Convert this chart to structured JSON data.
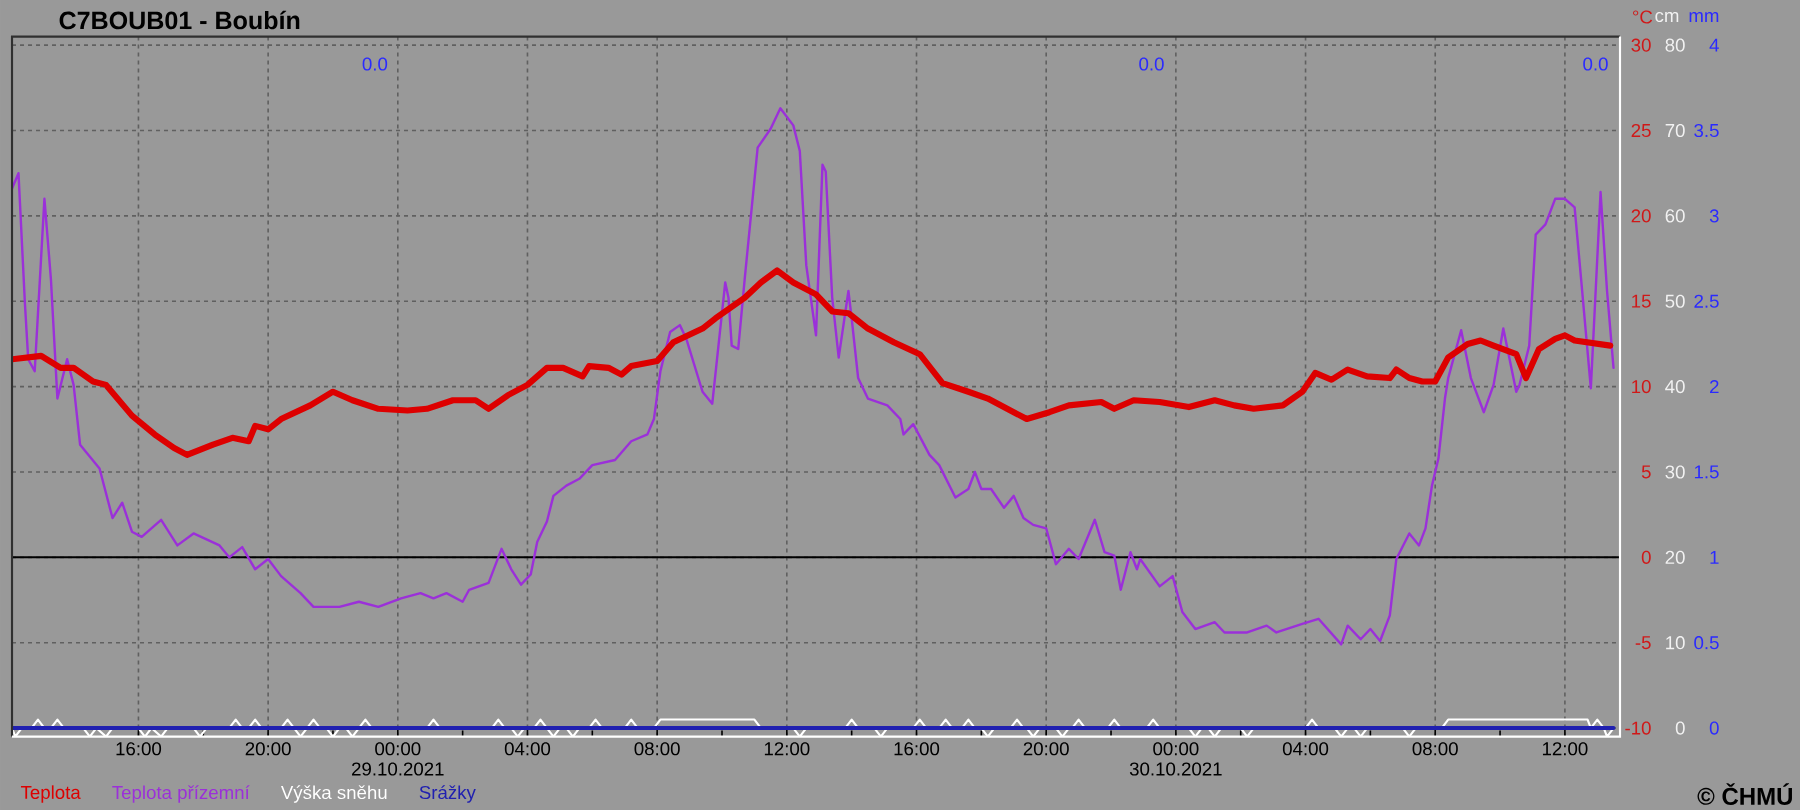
{
  "chart_data": {
    "type": "line",
    "title": "C7BOUB01 - Boubín",
    "ylabel": "°C",
    "y2label": "cm",
    "y3label": "mm",
    "xlim": [
      "2021-10-28T12:06",
      "2021-10-30T13:42"
    ],
    "xticks": [
      {
        "value": "2021-10-28T16:00",
        "label": "16:00"
      },
      {
        "value": "2021-10-28T20:00",
        "label": "20:00"
      },
      {
        "value": "2021-10-29T00:00",
        "label": "00:00 29.10.2021"
      },
      {
        "value": "2021-10-29T04:00",
        "label": "04:00"
      },
      {
        "value": "2021-10-29T08:00",
        "label": "08:00"
      },
      {
        "value": "2021-10-29T12:00",
        "label": "12:00"
      },
      {
        "value": "2021-10-29T16:00",
        "label": "16:00"
      },
      {
        "value": "2021-10-29T20:00",
        "label": "20:00"
      },
      {
        "value": "2021-10-30T00:00",
        "label": "00:00 30.10.2021"
      },
      {
        "value": "2021-10-30T04:00",
        "label": "04:00"
      },
      {
        "value": "2021-10-30T08:00",
        "label": "08:00"
      },
      {
        "value": "2021-10-30T12:00",
        "label": "12:00"
      }
    ],
    "ylim": [
      -10.5,
      30.5
    ],
    "yticks": [
      -10,
      -5,
      0,
      5,
      10,
      15,
      20,
      25,
      30
    ],
    "y2lim": [
      -1,
      81
    ],
    "y2ticks": [
      0,
      10,
      20,
      30,
      40,
      50,
      60,
      70,
      80
    ],
    "y3lim": [
      -0.05,
      4.05
    ],
    "y3ticks": [
      0,
      0.5,
      1,
      1.5,
      2,
      2.5,
      3,
      3.5,
      4
    ],
    "grid": true,
    "legend": "bottom",
    "ref_lines": [
      {
        "axis": "y",
        "value": 0,
        "color": "#000000"
      }
    ],
    "annotations": [
      "0.0",
      "0.0",
      "0.0",
      "© ČHMÚ"
    ],
    "series": [
      {
        "name": "Teplota",
        "color": "#dd0000",
        "x": [
          "2021-10-28T12:06",
          "2021-10-28T13:00",
          "2021-10-28T13:36",
          "2021-10-28T14:00",
          "2021-10-28T14:36",
          "2021-10-28T15:00",
          "2021-10-28T15:48",
          "2021-10-28T16:30",
          "2021-10-28T17:06",
          "2021-10-28T17:30",
          "2021-10-28T18:18",
          "2021-10-28T18:54",
          "2021-10-28T19:24",
          "2021-10-28T19:36",
          "2021-10-28T20:00",
          "2021-10-28T20:24",
          "2021-10-28T21:18",
          "2021-10-28T22:00",
          "2021-10-28T22:36",
          "2021-10-28T23:24",
          "2021-10-29T00:18",
          "2021-10-29T00:54",
          "2021-10-29T01:42",
          "2021-10-29T02:24",
          "2021-10-29T02:48",
          "2021-10-29T03:24",
          "2021-10-29T04:00",
          "2021-10-29T04:36",
          "2021-10-29T05:06",
          "2021-10-29T05:42",
          "2021-10-29T05:54",
          "2021-10-29T06:30",
          "2021-10-29T06:54",
          "2021-10-29T07:12",
          "2021-10-29T08:00",
          "2021-10-29T08:30",
          "2021-10-29T09:24",
          "2021-10-29T09:48",
          "2021-10-29T10:42",
          "2021-10-29T11:12",
          "2021-10-29T11:42",
          "2021-10-29T12:12",
          "2021-10-29T12:54",
          "2021-10-29T13:24",
          "2021-10-29T13:54",
          "2021-10-29T14:30",
          "2021-10-29T15:18",
          "2021-10-29T16:06",
          "2021-10-29T16:48",
          "2021-10-29T17:36",
          "2021-10-29T18:12",
          "2021-10-29T19:24",
          "2021-10-29T20:06",
          "2021-10-29T20:42",
          "2021-10-29T21:42",
          "2021-10-29T22:06",
          "2021-10-29T22:42",
          "2021-10-29T23:30",
          "2021-10-30T00:24",
          "2021-10-30T01:12",
          "2021-10-30T01:48",
          "2021-10-30T02:24",
          "2021-10-30T03:18",
          "2021-10-30T03:54",
          "2021-10-30T04:18",
          "2021-10-30T04:48",
          "2021-10-30T05:18",
          "2021-10-30T05:54",
          "2021-10-30T06:36",
          "2021-10-30T06:48",
          "2021-10-30T07:12",
          "2021-10-30T07:36",
          "2021-10-30T08:00",
          "2021-10-30T08:24",
          "2021-10-30T09:00",
          "2021-10-30T09:24",
          "2021-10-30T09:48",
          "2021-10-30T10:30",
          "2021-10-30T10:48",
          "2021-10-30T11:12",
          "2021-10-30T11:42",
          "2021-10-30T12:00",
          "2021-10-30T12:18",
          "2021-10-30T13:24"
        ],
        "values": [
          11.6,
          11.8,
          11.1,
          11.1,
          10.3,
          10.1,
          8.3,
          7.2,
          6.4,
          6.0,
          6.6,
          7.0,
          6.8,
          7.7,
          7.5,
          8.1,
          8.9,
          9.7,
          9.2,
          8.7,
          8.6,
          8.7,
          9.2,
          9.2,
          8.7,
          9.5,
          10.1,
          11.1,
          11.1,
          10.6,
          11.2,
          11.1,
          10.7,
          11.2,
          11.5,
          12.6,
          13.4,
          14.0,
          15.2,
          16.1,
          16.8,
          16.1,
          15.4,
          14.4,
          14.3,
          13.4,
          12.6,
          11.9,
          10.2,
          9.7,
          9.3,
          8.1,
          8.5,
          8.9,
          9.1,
          8.7,
          9.2,
          9.1,
          8.8,
          9.2,
          8.9,
          8.7,
          8.9,
          9.7,
          10.8,
          10.4,
          11.0,
          10.6,
          10.5,
          11.0,
          10.5,
          10.3,
          10.3,
          11.7,
          12.5,
          12.7,
          12.4,
          11.9,
          10.5,
          12.2,
          12.8,
          13.0,
          12.7,
          12.4
        ]
      },
      {
        "name": "Teplota přízemní",
        "color": "#9b30d9",
        "x": [
          "2021-10-28T12:06",
          "2021-10-28T12:18",
          "2021-10-28T12:30",
          "2021-10-28T12:36",
          "2021-10-28T12:48",
          "2021-10-28T13:06",
          "2021-10-28T13:18",
          "2021-10-28T13:30",
          "2021-10-28T13:48",
          "2021-10-28T14:00",
          "2021-10-28T14:12",
          "2021-10-28T14:48",
          "2021-10-28T15:12",
          "2021-10-28T15:30",
          "2021-10-28T15:48",
          "2021-10-28T16:06",
          "2021-10-28T16:42",
          "2021-10-28T17:12",
          "2021-10-28T17:42",
          "2021-10-28T18:30",
          "2021-10-28T18:48",
          "2021-10-28T19:12",
          "2021-10-28T19:36",
          "2021-10-28T20:00",
          "2021-10-28T20:24",
          "2021-10-28T21:00",
          "2021-10-28T21:24",
          "2021-10-28T22:12",
          "2021-10-28T22:48",
          "2021-10-28T23:24",
          "2021-10-29T00:06",
          "2021-10-29T00:42",
          "2021-10-29T01:06",
          "2021-10-29T01:30",
          "2021-10-29T02:00",
          "2021-10-29T02:12",
          "2021-10-29T02:48",
          "2021-10-29T03:12",
          "2021-10-29T03:30",
          "2021-10-29T03:48",
          "2021-10-29T04:06",
          "2021-10-29T04:18",
          "2021-10-29T04:36",
          "2021-10-29T04:48",
          "2021-10-29T05:12",
          "2021-10-29T05:36",
          "2021-10-29T06:00",
          "2021-10-29T06:42",
          "2021-10-29T07:12",
          "2021-10-29T07:42",
          "2021-10-29T07:54",
          "2021-10-29T08:06",
          "2021-10-29T08:24",
          "2021-10-29T08:42",
          "2021-10-29T08:54",
          "2021-10-29T09:24",
          "2021-10-29T09:42",
          "2021-10-29T10:06",
          "2021-10-29T10:12",
          "2021-10-29T10:18",
          "2021-10-29T10:30",
          "2021-10-29T10:42",
          "2021-10-29T11:06",
          "2021-10-29T11:30",
          "2021-10-29T11:48",
          "2021-10-29T12:12",
          "2021-10-29T12:24",
          "2021-10-29T12:36",
          "2021-10-29T12:54",
          "2021-10-29T13:06",
          "2021-10-29T13:12",
          "2021-10-29T13:24",
          "2021-10-29T13:36",
          "2021-10-29T13:54",
          "2021-10-29T14:00",
          "2021-10-29T14:12",
          "2021-10-29T14:30",
          "2021-10-29T15:06",
          "2021-10-29T15:30",
          "2021-10-29T15:36",
          "2021-10-29T15:54",
          "2021-10-29T16:24",
          "2021-10-29T16:42",
          "2021-10-29T17:12",
          "2021-10-29T17:36",
          "2021-10-29T17:48",
          "2021-10-29T18:00",
          "2021-10-29T18:18",
          "2021-10-29T18:42",
          "2021-10-29T19:00",
          "2021-10-29T19:18",
          "2021-10-29T19:36",
          "2021-10-29T20:00",
          "2021-10-29T20:18",
          "2021-10-29T20:42",
          "2021-10-29T21:00",
          "2021-10-29T21:30",
          "2021-10-29T21:48",
          "2021-10-29T22:06",
          "2021-10-29T22:18",
          "2021-10-29T22:36",
          "2021-10-29T22:48",
          "2021-10-29T22:54",
          "2021-10-29T23:30",
          "2021-10-29T23:54",
          "2021-10-30T00:12",
          "2021-10-30T00:36",
          "2021-10-30T01:12",
          "2021-10-30T01:30",
          "2021-10-30T02:12",
          "2021-10-30T02:48",
          "2021-10-30T03:06",
          "2021-10-30T03:54",
          "2021-10-30T04:24",
          "2021-10-30T05:06",
          "2021-10-30T05:18",
          "2021-10-30T05:42",
          "2021-10-30T06:00",
          "2021-10-30T06:18",
          "2021-10-30T06:36",
          "2021-10-30T06:48",
          "2021-10-30T07:12",
          "2021-10-30T07:30",
          "2021-10-30T07:42",
          "2021-10-30T07:54",
          "2021-10-30T08:06",
          "2021-10-30T08:18",
          "2021-10-30T08:24",
          "2021-10-30T08:48",
          "2021-10-30T09:06",
          "2021-10-30T09:30",
          "2021-10-30T09:48",
          "2021-10-30T10:06",
          "2021-10-30T10:30",
          "2021-10-30T10:36",
          "2021-10-30T10:54",
          "2021-10-30T11:06",
          "2021-10-30T11:24",
          "2021-10-30T11:42",
          "2021-10-30T12:00",
          "2021-10-30T12:18",
          "2021-10-30T12:30",
          "2021-10-30T12:48",
          "2021-10-30T13:06",
          "2021-10-30T13:18",
          "2021-10-30T13:30"
        ],
        "values": [
          21.6,
          22.5,
          14.8,
          11.6,
          10.9,
          21.0,
          16.3,
          9.3,
          11.6,
          10.1,
          6.6,
          5.2,
          2.3,
          3.2,
          1.5,
          1.2,
          2.2,
          0.7,
          1.4,
          0.7,
          0.0,
          0.6,
          -0.7,
          -0.1,
          -1.1,
          -2.1,
          -2.9,
          -2.9,
          -2.6,
          -2.9,
          -2.4,
          -2.1,
          -2.4,
          -2.1,
          -2.6,
          -1.9,
          -1.5,
          0.5,
          -0.7,
          -1.6,
          -1.0,
          0.9,
          2.1,
          3.6,
          4.2,
          4.6,
          5.4,
          5.7,
          6.8,
          7.2,
          8.1,
          10.9,
          13.2,
          13.6,
          12.8,
          9.7,
          9.0,
          16.1,
          15.2,
          12.4,
          12.2,
          16.3,
          24.0,
          25.1,
          26.3,
          25.3,
          23.8,
          17.1,
          13.0,
          23.0,
          22.6,
          15.2,
          11.7,
          15.6,
          14.0,
          10.5,
          9.3,
          8.9,
          8.1,
          7.2,
          7.8,
          6.0,
          5.4,
          3.5,
          4.0,
          5.0,
          4.0,
          4.0,
          2.9,
          3.6,
          2.3,
          1.9,
          1.7,
          -0.4,
          0.5,
          -0.1,
          2.2,
          0.3,
          0.1,
          -1.9,
          0.3,
          -0.7,
          -0.1,
          -1.7,
          -1.1,
          -3.2,
          -4.2,
          -3.8,
          -4.4,
          -4.4,
          -4.0,
          -4.4,
          -3.9,
          -3.6,
          -5.1,
          -4.0,
          -4.8,
          -4.2,
          -4.9,
          -3.4,
          -0.1,
          1.4,
          0.7,
          1.7,
          4.2,
          5.8,
          9.3,
          10.5,
          13.3,
          10.5,
          8.5,
          10.1,
          13.4,
          9.7,
          10.1,
          12.4,
          18.9,
          19.5,
          21.0,
          21.0,
          20.5,
          16.3,
          9.9,
          21.4,
          15.6,
          11.1
        ]
      },
      {
        "name": "Výška sněhu",
        "color": "#ffffff",
        "axis": "y2",
        "x": [
          "2021-10-28T12:06",
          "2021-10-28T12:12",
          "2021-10-28T12:24",
          "2021-10-28T12:42",
          "2021-10-28T12:54",
          "2021-10-28T13:06",
          "2021-10-28T13:18",
          "2021-10-28T13:30",
          "2021-10-28T13:42",
          "2021-10-28T14:18",
          "2021-10-28T14:30",
          "2021-10-28T14:42",
          "2021-10-28T15:00",
          "2021-10-28T15:12",
          "2021-10-28T16:00",
          "2021-10-28T16:12",
          "2021-10-28T16:24",
          "2021-10-28T16:42",
          "2021-10-28T16:54",
          "2021-10-28T17:42",
          "2021-10-28T17:54",
          "2021-10-28T18:06",
          "2021-10-28T18:48",
          "2021-10-28T19:00",
          "2021-10-28T19:12",
          "2021-10-28T19:24",
          "2021-10-28T19:36",
          "2021-10-28T19:48",
          "2021-10-28T20:24",
          "2021-10-28T20:36",
          "2021-10-28T20:48",
          "2021-10-28T21:00",
          "2021-10-28T21:12",
          "2021-10-28T21:24",
          "2021-10-28T21:36",
          "2021-10-28T21:48",
          "2021-10-28T22:00",
          "2021-10-28T22:12",
          "2021-10-28T22:24",
          "2021-10-28T22:36",
          "2021-10-28T22:48",
          "2021-10-28T23:00",
          "2021-10-28T23:12",
          "2021-10-29T00:54",
          "2021-10-29T01:06",
          "2021-10-29T01:18",
          "2021-10-29T02:54",
          "2021-10-29T03:06",
          "2021-10-29T03:18",
          "2021-10-29T03:30",
          "2021-10-29T03:42",
          "2021-10-29T03:54",
          "2021-10-29T04:12",
          "2021-10-29T04:24",
          "2021-10-29T04:36",
          "2021-10-29T04:48",
          "2021-10-29T05:00",
          "2021-10-29T05:12",
          "2021-10-29T05:24",
          "2021-10-29T05:36",
          "2021-10-29T05:54",
          "2021-10-29T06:06",
          "2021-10-29T06:18",
          "2021-10-29T07:00",
          "2021-10-29T07:12",
          "2021-10-29T07:24",
          "2021-10-29T07:54",
          "2021-10-29T08:06",
          "2021-10-29T11:00",
          "2021-10-29T11:12",
          "2021-10-29T12:12",
          "2021-10-29T12:24",
          "2021-10-29T12:36",
          "2021-10-29T13:48",
          "2021-10-29T14:00",
          "2021-10-29T14:12",
          "2021-10-29T14:42",
          "2021-10-29T14:54",
          "2021-10-29T15:06",
          "2021-10-29T15:54",
          "2021-10-29T16:06",
          "2021-10-29T16:18",
          "2021-10-29T16:42",
          "2021-10-29T16:54",
          "2021-10-29T17:06",
          "2021-10-29T17:24",
          "2021-10-29T17:36",
          "2021-10-29T17:48",
          "2021-10-29T18:00",
          "2021-10-29T18:12",
          "2021-10-29T18:24",
          "2021-10-29T18:54",
          "2021-10-29T19:06",
          "2021-10-29T19:18",
          "2021-10-29T19:24",
          "2021-10-29T19:36",
          "2021-10-29T19:48",
          "2021-10-29T20:18",
          "2021-10-29T20:30",
          "2021-10-29T20:42",
          "2021-10-29T20:48",
          "2021-10-29T21:00",
          "2021-10-29T21:12",
          "2021-10-29T21:54",
          "2021-10-29T22:06",
          "2021-10-29T22:18",
          "2021-10-29T23:06",
          "2021-10-29T23:18",
          "2021-10-29T23:30",
          "2021-10-30T00:24",
          "2021-10-30T00:36",
          "2021-10-30T00:48",
          "2021-10-30T01:00",
          "2021-10-30T01:12",
          "2021-10-30T01:24",
          "2021-10-30T02:00",
          "2021-10-30T02:12",
          "2021-10-30T02:24",
          "2021-10-30T04:00",
          "2021-10-30T04:12",
          "2021-10-30T04:24",
          "2021-10-30T04:54",
          "2021-10-30T05:06",
          "2021-10-30T05:18",
          "2021-10-30T05:30",
          "2021-10-30T05:42",
          "2021-10-30T05:54",
          "2021-10-30T07:00",
          "2021-10-30T07:12",
          "2021-10-30T07:24",
          "2021-10-30T08:12",
          "2021-10-30T08:24",
          "2021-10-30T12:42",
          "2021-10-30T12:48",
          "2021-10-30T13:00",
          "2021-10-30T13:12",
          "2021-10-30T13:18",
          "2021-10-30T13:30"
        ],
        "values": [
          0,
          -1,
          0,
          0,
          1,
          0,
          0,
          1,
          0,
          0,
          -1,
          0,
          -1,
          0,
          0,
          -1,
          0,
          -1,
          0,
          0,
          -1,
          0,
          0,
          1,
          0,
          0,
          1,
          0,
          0,
          1,
          0,
          -1,
          0,
          1,
          0,
          0,
          -1,
          0,
          0,
          -1,
          0,
          1,
          0,
          0,
          1,
          0,
          0,
          1,
          0,
          0,
          -1,
          0,
          0,
          1,
          0,
          -1,
          0,
          0,
          -1,
          0,
          0,
          1,
          0,
          0,
          1,
          0,
          0,
          1,
          1,
          0,
          0,
          -1,
          0,
          0,
          1,
          0,
          0,
          -1,
          0,
          0,
          1,
          0,
          0,
          1,
          0,
          0,
          1,
          0,
          0,
          -1,
          0,
          0,
          1,
          0,
          0,
          -1,
          0,
          0,
          -1,
          0,
          0,
          1,
          0,
          0,
          1,
          0,
          0,
          1,
          0,
          0,
          -1,
          0,
          0,
          -1,
          0,
          0,
          -1,
          0,
          0,
          1,
          0,
          0,
          -1,
          0,
          0,
          -1,
          0,
          0,
          -1,
          0,
          0,
          1,
          1,
          0,
          1,
          0,
          -1,
          0
        ]
      },
      {
        "name": "Srážky",
        "color": "#2020b0",
        "axis": "y3",
        "x": [
          "2021-10-28T12:06",
          "2021-10-30T13:30"
        ],
        "values": [
          0,
          0
        ]
      }
    ]
  }
}
